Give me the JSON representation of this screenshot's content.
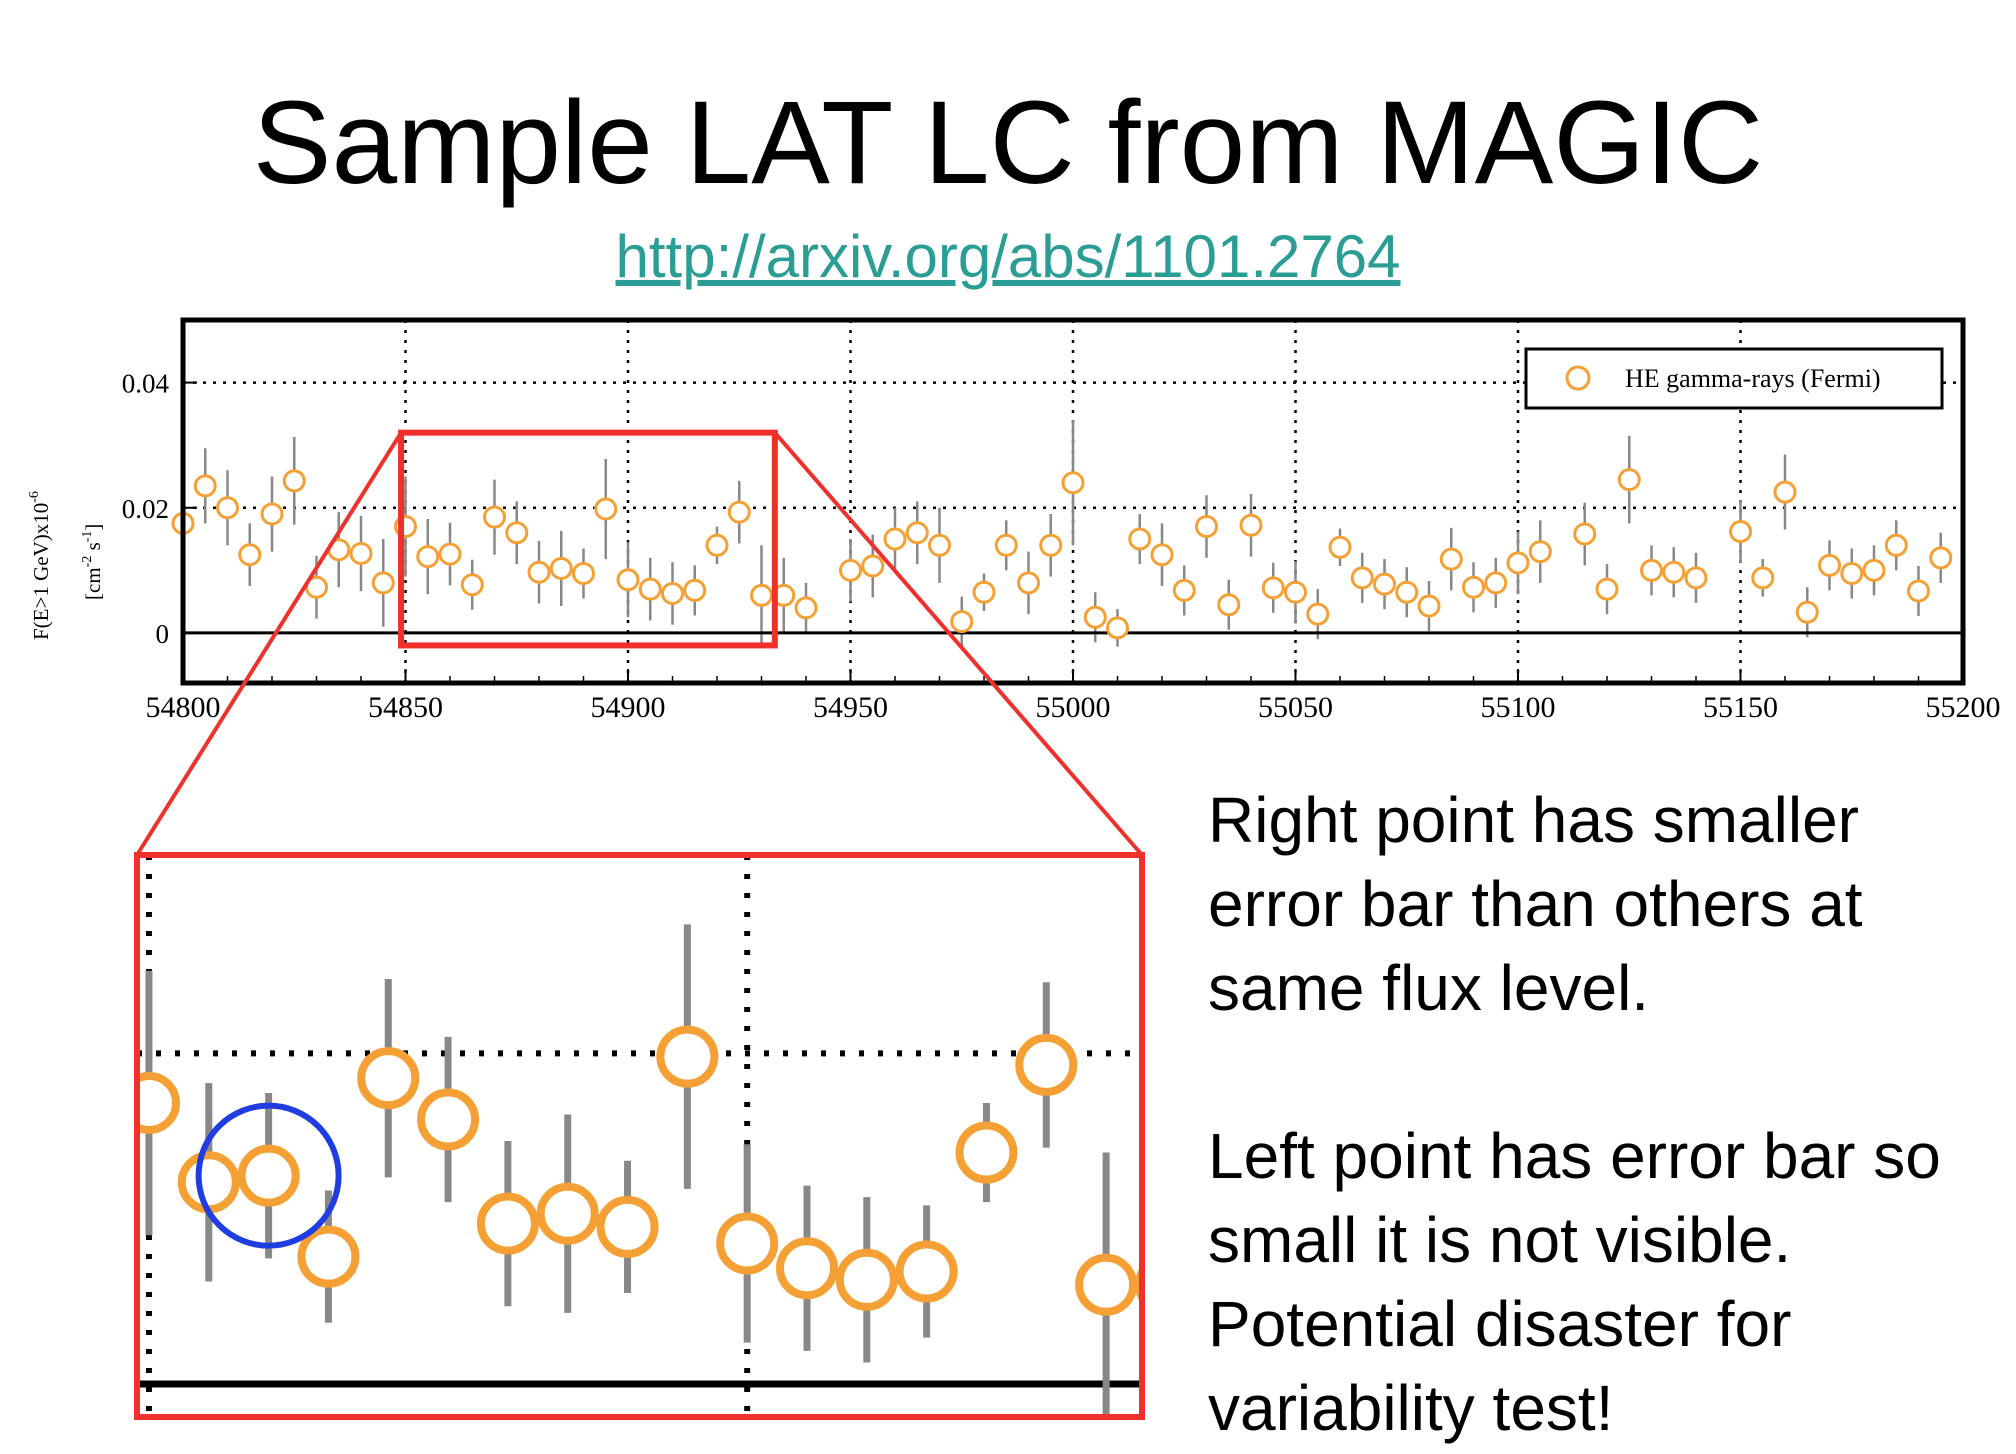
{
  "title": "Sample LAT LC from MAGIC",
  "link": "http://arxiv.org/abs/1101.2764",
  "notes": [
    "Right point has smaller error bar than others at same flux level.",
    "Left point has error bar so small it is not visible. Potential disaster for variability test!"
  ],
  "colors": {
    "marker": "#f5a034",
    "error_bar": "#888888",
    "highlight_box": "#f0302a",
    "circle_annotation": "#1f3de0",
    "link": "#2a9d94"
  },
  "chart_data": {
    "type": "scatter",
    "ylabel_line1": "F(E>1 GeV)x10",
    "ylabel_exponent": "-6",
    "ylabel_line2": "[cm",
    "ylabel_units_exp1": "-2",
    "ylabel_units_mid": " s",
    "ylabel_units_exp2": "-1",
    "ylabel_units_end": "]",
    "xlim": [
      54800,
      55200
    ],
    "ylim": [
      -0.008,
      0.05
    ],
    "xticks": [
      54800,
      54850,
      54900,
      54950,
      55000,
      55050,
      55100,
      55150,
      55200
    ],
    "xtick_labels": [
      "54800",
      "54850",
      "54900",
      "54950",
      "55000",
      "55050",
      "55100",
      "55150",
      "55200"
    ],
    "yticks": [
      0,
      0.02,
      0.04
    ],
    "ytick_labels": [
      "0",
      "0.02",
      "0.04"
    ],
    "grid": "dotted",
    "legend_label": "HE gamma-rays (Fermi)",
    "legend_position": "top-right",
    "series": [
      {
        "name": "HE gamma-rays (Fermi)",
        "x": [
          54800,
          54805,
          54810,
          54815,
          54820,
          54825,
          54830,
          54835,
          54840,
          54845,
          54850,
          54855,
          54860,
          54865,
          54870,
          54875,
          54880,
          54885,
          54890,
          54895,
          54900,
          54905,
          54910,
          54915,
          54920,
          54925,
          54930,
          54935,
          54940,
          54950,
          54955,
          54960,
          54965,
          54970,
          54975,
          54980,
          54985,
          54990,
          54995,
          55000,
          55005,
          55010,
          55015,
          55020,
          55025,
          55030,
          55035,
          55040,
          55045,
          55050,
          55055,
          55060,
          55065,
          55070,
          55075,
          55080,
          55085,
          55090,
          55095,
          55100,
          55105,
          55115,
          55120,
          55125,
          55130,
          55135,
          55140,
          55150,
          55155,
          55160,
          55165,
          55170,
          55175,
          55180,
          55185,
          55190,
          55195
        ],
        "y": [
          0.0175,
          0.0235,
          0.02,
          0.0125,
          0.019,
          0.0243,
          0.0073,
          0.0133,
          0.0127,
          0.008,
          0.017,
          0.0122,
          0.0126,
          0.0077,
          0.0185,
          0.016,
          0.0097,
          0.0103,
          0.0095,
          0.0198,
          0.0085,
          0.007,
          0.0063,
          0.0068,
          0.014,
          0.0193,
          0.006,
          0.006,
          0.004,
          0.01,
          0.0107,
          0.015,
          0.016,
          0.014,
          0.0018,
          0.0065,
          0.014,
          0.008,
          0.014,
          0.024,
          0.0025,
          0.0008,
          0.015,
          0.0125,
          0.0068,
          0.017,
          0.0045,
          0.0172,
          0.0072,
          0.0065,
          0.003,
          0.0137,
          0.0088,
          0.0078,
          0.0065,
          0.0043,
          0.0118,
          0.0073,
          0.008,
          0.0112,
          0.013,
          0.0158,
          0.007,
          0.0245,
          0.01,
          0.0097,
          0.0088,
          0.0162,
          0.0088,
          0.0225,
          0.0033,
          0.0108,
          0.0095,
          0.01,
          0.014,
          0.0067,
          0.012
        ],
        "err": [
          0.005,
          0.006,
          0.006,
          0.005,
          0.006,
          0.007,
          0.005,
          0.006,
          0.006,
          0.007,
          0.008,
          0.006,
          0.005,
          0.004,
          0.006,
          0.005,
          0.005,
          0.006,
          0.004,
          0.008,
          0.006,
          0.005,
          0.005,
          0.004,
          0.003,
          0.005,
          0.008,
          0.006,
          0.004,
          0.005,
          0.005,
          0.005,
          0.005,
          0.006,
          0.004,
          0.003,
          0.004,
          0.005,
          0.005,
          0.01,
          0.004,
          0.003,
          0.004,
          0.005,
          0.004,
          0.005,
          0.004,
          0.005,
          0.004,
          0.005,
          0.004,
          0.003,
          0.004,
          0.004,
          0.004,
          0.004,
          0.005,
          0.004,
          0.004,
          0.005,
          0.005,
          0.005,
          0.004,
          0.007,
          0.004,
          0.004,
          0.004,
          0.005,
          0.003,
          0.006,
          0.004,
          0.004,
          0.004,
          0.004,
          0.004,
          0.004,
          0.004
        ]
      }
    ],
    "zoom_window": {
      "x": [
        54849,
        54933
      ],
      "y": [
        -0.002,
        0.032
      ]
    },
    "annotated_points_x": [
      54860,
      54917
    ]
  }
}
